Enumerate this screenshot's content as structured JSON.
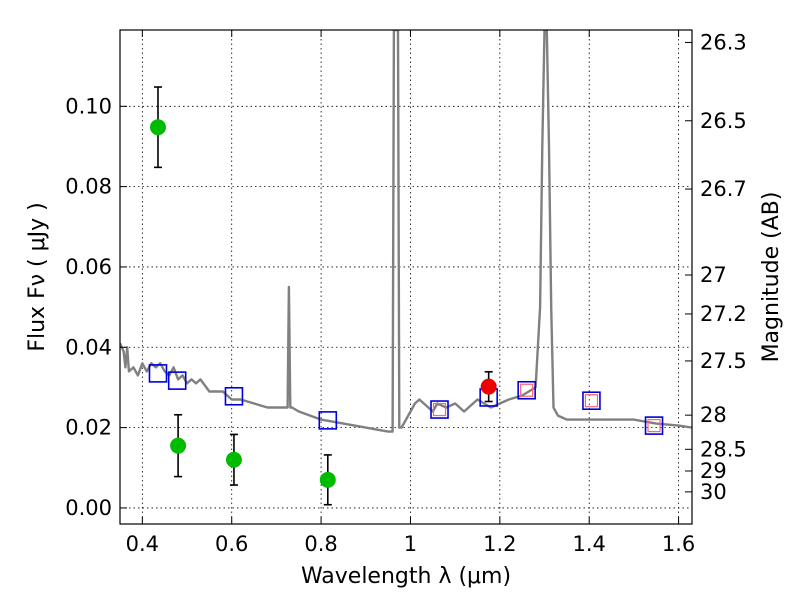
{
  "chart_data": {
    "type": "scatter",
    "title": "",
    "xlabel": "Wavelength  λ (μm)",
    "ylabel": "Flux  Fν  ( μJy )",
    "ylabel_right": "Magnitude (AB)",
    "xlim": [
      0.35,
      1.63
    ],
    "ylim": [
      -0.004,
      0.119
    ],
    "x_ticks": [
      0.4,
      0.6,
      0.8,
      1.0,
      1.2,
      1.4,
      1.6
    ],
    "x_tick_labels": [
      "0.4",
      "0.6",
      "0.8",
      "1",
      "1.2",
      "1.4",
      "1.6"
    ],
    "y_ticks": [
      0.0,
      0.02,
      0.04,
      0.06,
      0.08,
      0.1
    ],
    "y_tick_labels": [
      "0.00",
      "0.02",
      "0.04",
      "0.06",
      "0.08",
      "0.10"
    ],
    "right_ticks": [
      {
        "flux": 0.1159,
        "label": "26.3"
      },
      {
        "flux": 0.0964,
        "label": "26.5"
      },
      {
        "flux": 0.0794,
        "label": "26.7"
      },
      {
        "flux": 0.058,
        "label": "27"
      },
      {
        "flux": 0.0483,
        "label": "27.2"
      },
      {
        "flux": 0.0366,
        "label": "27.5"
      },
      {
        "flux": 0.0231,
        "label": "28"
      },
      {
        "flux": 0.0146,
        "label": "28.5"
      },
      {
        "flux": 0.0092,
        "label": "29"
      },
      {
        "flux": 0.004,
        "label": "30"
      }
    ],
    "grid": true,
    "colors": {
      "model": "#808080",
      "detections": "#00bb00",
      "highlight": "#ee0000",
      "model_boxes": "#0000dd",
      "inner_boxes": "#ff6666",
      "errorbars": "#000000"
    },
    "model_spectrum": {
      "name": "SED model",
      "x": [
        0.35,
        0.358,
        0.362,
        0.366,
        0.37,
        0.38,
        0.39,
        0.4,
        0.41,
        0.42,
        0.43,
        0.44,
        0.45,
        0.46,
        0.47,
        0.48,
        0.49,
        0.5,
        0.51,
        0.52,
        0.53,
        0.55,
        0.58,
        0.6,
        0.62,
        0.65,
        0.68,
        0.7,
        0.72,
        0.725,
        0.728,
        0.731,
        0.735,
        0.75,
        0.8,
        0.85,
        0.9,
        0.95,
        0.96,
        0.963,
        0.966,
        0.969,
        0.972,
        0.975,
        0.98,
        0.99,
        1.0,
        1.01,
        1.02,
        1.05,
        1.06,
        1.08,
        1.1,
        1.12,
        1.15,
        1.18,
        1.2,
        1.22,
        1.25,
        1.28,
        1.29,
        1.295,
        1.3,
        1.305,
        1.31,
        1.315,
        1.32,
        1.33,
        1.35,
        1.4,
        1.45,
        1.5,
        1.55,
        1.6,
        1.63
      ],
      "y": [
        0.041,
        0.039,
        0.035,
        0.04,
        0.034,
        0.035,
        0.033,
        0.036,
        0.034,
        0.036,
        0.035,
        0.036,
        0.034,
        0.033,
        0.035,
        0.032,
        0.033,
        0.031,
        0.032,
        0.031,
        0.032,
        0.029,
        0.029,
        0.027,
        0.027,
        0.026,
        0.025,
        0.025,
        0.025,
        0.025,
        0.055,
        0.025,
        0.025,
        0.024,
        0.022,
        0.021,
        0.02,
        0.019,
        0.019,
        0.119,
        0.119,
        0.119,
        0.119,
        0.02,
        0.02,
        0.022,
        0.024,
        0.026,
        0.027,
        0.024,
        0.026,
        0.025,
        0.026,
        0.024,
        0.027,
        0.025,
        0.026,
        0.027,
        0.028,
        0.03,
        0.05,
        0.09,
        0.119,
        0.119,
        0.09,
        0.05,
        0.025,
        0.023,
        0.022,
        0.022,
        0.022,
        0.022,
        0.021,
        0.0205,
        0.02
      ]
    },
    "model_band_fluxes": {
      "name": "Model band fluxes",
      "x": [
        0.435,
        0.478,
        0.605,
        0.815,
        1.065,
        1.175,
        1.26,
        1.405,
        1.545
      ],
      "y": [
        0.0335,
        0.0317,
        0.0278,
        0.0218,
        0.0245,
        0.0275,
        0.0293,
        0.0267,
        0.0205
      ]
    },
    "inner_band_fluxes": {
      "name": "Model band fluxes (inner)",
      "x": [
        1.065,
        1.26,
        1.405,
        1.545
      ],
      "y": [
        0.0245,
        0.0293,
        0.0267,
        0.0205
      ]
    },
    "observed": {
      "name": "Observed photometry",
      "points": [
        {
          "x": 0.435,
          "y": 0.0948,
          "err": 0.01,
          "color": "green"
        },
        {
          "x": 0.48,
          "y": 0.0155,
          "err": 0.0077,
          "color": "green"
        },
        {
          "x": 0.605,
          "y": 0.012,
          "err": 0.0063,
          "color": "green"
        },
        {
          "x": 0.815,
          "y": 0.007,
          "err": 0.0062,
          "color": "green"
        },
        {
          "x": 1.175,
          "y": 0.0302,
          "err": 0.0037,
          "color": "red"
        }
      ]
    }
  }
}
